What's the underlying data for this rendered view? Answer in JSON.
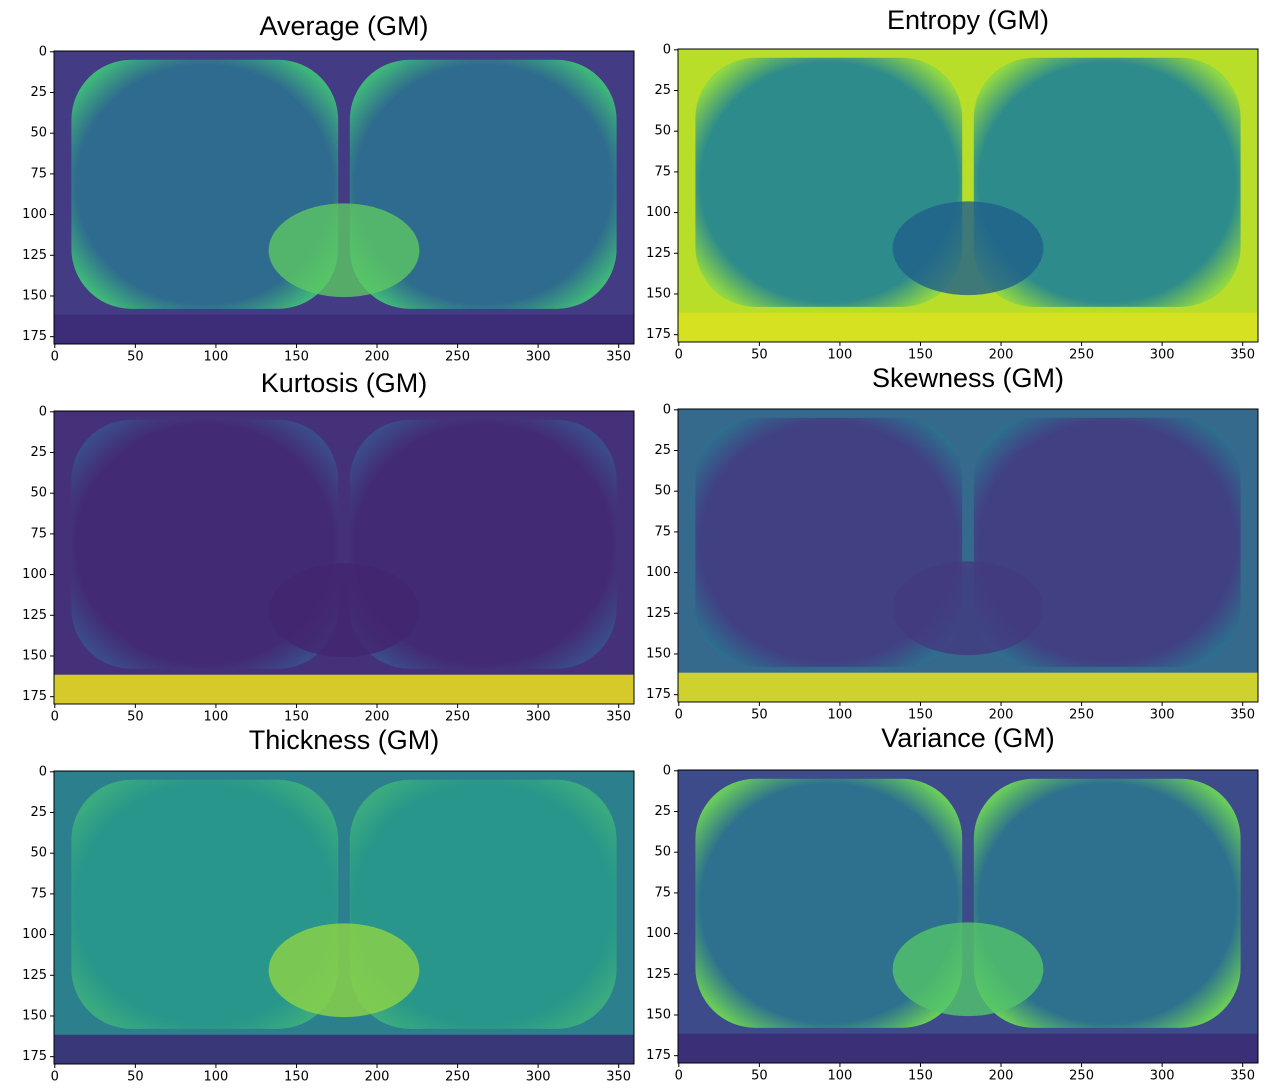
{
  "chart_data": [
    {
      "type": "image",
      "title": "Average (GM)",
      "xlim": [
        -0.5,
        359.5
      ],
      "ylim": [
        179.5,
        -0.5
      ],
      "xticks": [
        0,
        50,
        100,
        150,
        200,
        250,
        300,
        350
      ],
      "yticks": [
        0,
        25,
        50,
        75,
        100,
        125,
        150,
        175
      ],
      "colormap": "viridis"
    },
    {
      "type": "image",
      "title": "Entropy (GM)",
      "xlim": [
        -0.5,
        359.5
      ],
      "ylim": [
        179.5,
        -0.5
      ],
      "xticks": [
        0,
        50,
        100,
        150,
        200,
        250,
        300,
        350
      ],
      "yticks": [
        0,
        25,
        50,
        75,
        100,
        125,
        150,
        175
      ],
      "colormap": "viridis"
    },
    {
      "type": "image",
      "title": "Kurtosis (GM)",
      "xlim": [
        -0.5,
        359.5
      ],
      "ylim": [
        179.5,
        -0.5
      ],
      "xticks": [
        0,
        50,
        100,
        150,
        200,
        250,
        300,
        350
      ],
      "yticks": [
        0,
        25,
        50,
        75,
        100,
        125,
        150,
        175
      ],
      "colormap": "viridis"
    },
    {
      "type": "image",
      "title": "Skewness (GM)",
      "xlim": [
        -0.5,
        359.5
      ],
      "ylim": [
        179.5,
        -0.5
      ],
      "xticks": [
        0,
        50,
        100,
        150,
        200,
        250,
        300,
        350
      ],
      "yticks": [
        0,
        25,
        50,
        75,
        100,
        125,
        150,
        175
      ],
      "colormap": "viridis"
    },
    {
      "type": "image",
      "title": "Thickness (GM)",
      "xlim": [
        -0.5,
        359.5
      ],
      "ylim": [
        179.5,
        -0.5
      ],
      "xticks": [
        0,
        50,
        100,
        150,
        200,
        250,
        300,
        350
      ],
      "yticks": [
        0,
        25,
        50,
        75,
        100,
        125,
        150,
        175
      ],
      "colormap": "viridis"
    },
    {
      "type": "image",
      "title": "Variance (GM)",
      "xlim": [
        -0.5,
        359.5
      ],
      "ylim": [
        179.5,
        -0.5
      ],
      "xticks": [
        0,
        50,
        100,
        150,
        200,
        250,
        300,
        350
      ],
      "yticks": [
        0,
        25,
        50,
        75,
        100,
        125,
        150,
        175
      ],
      "colormap": "viridis"
    }
  ]
}
